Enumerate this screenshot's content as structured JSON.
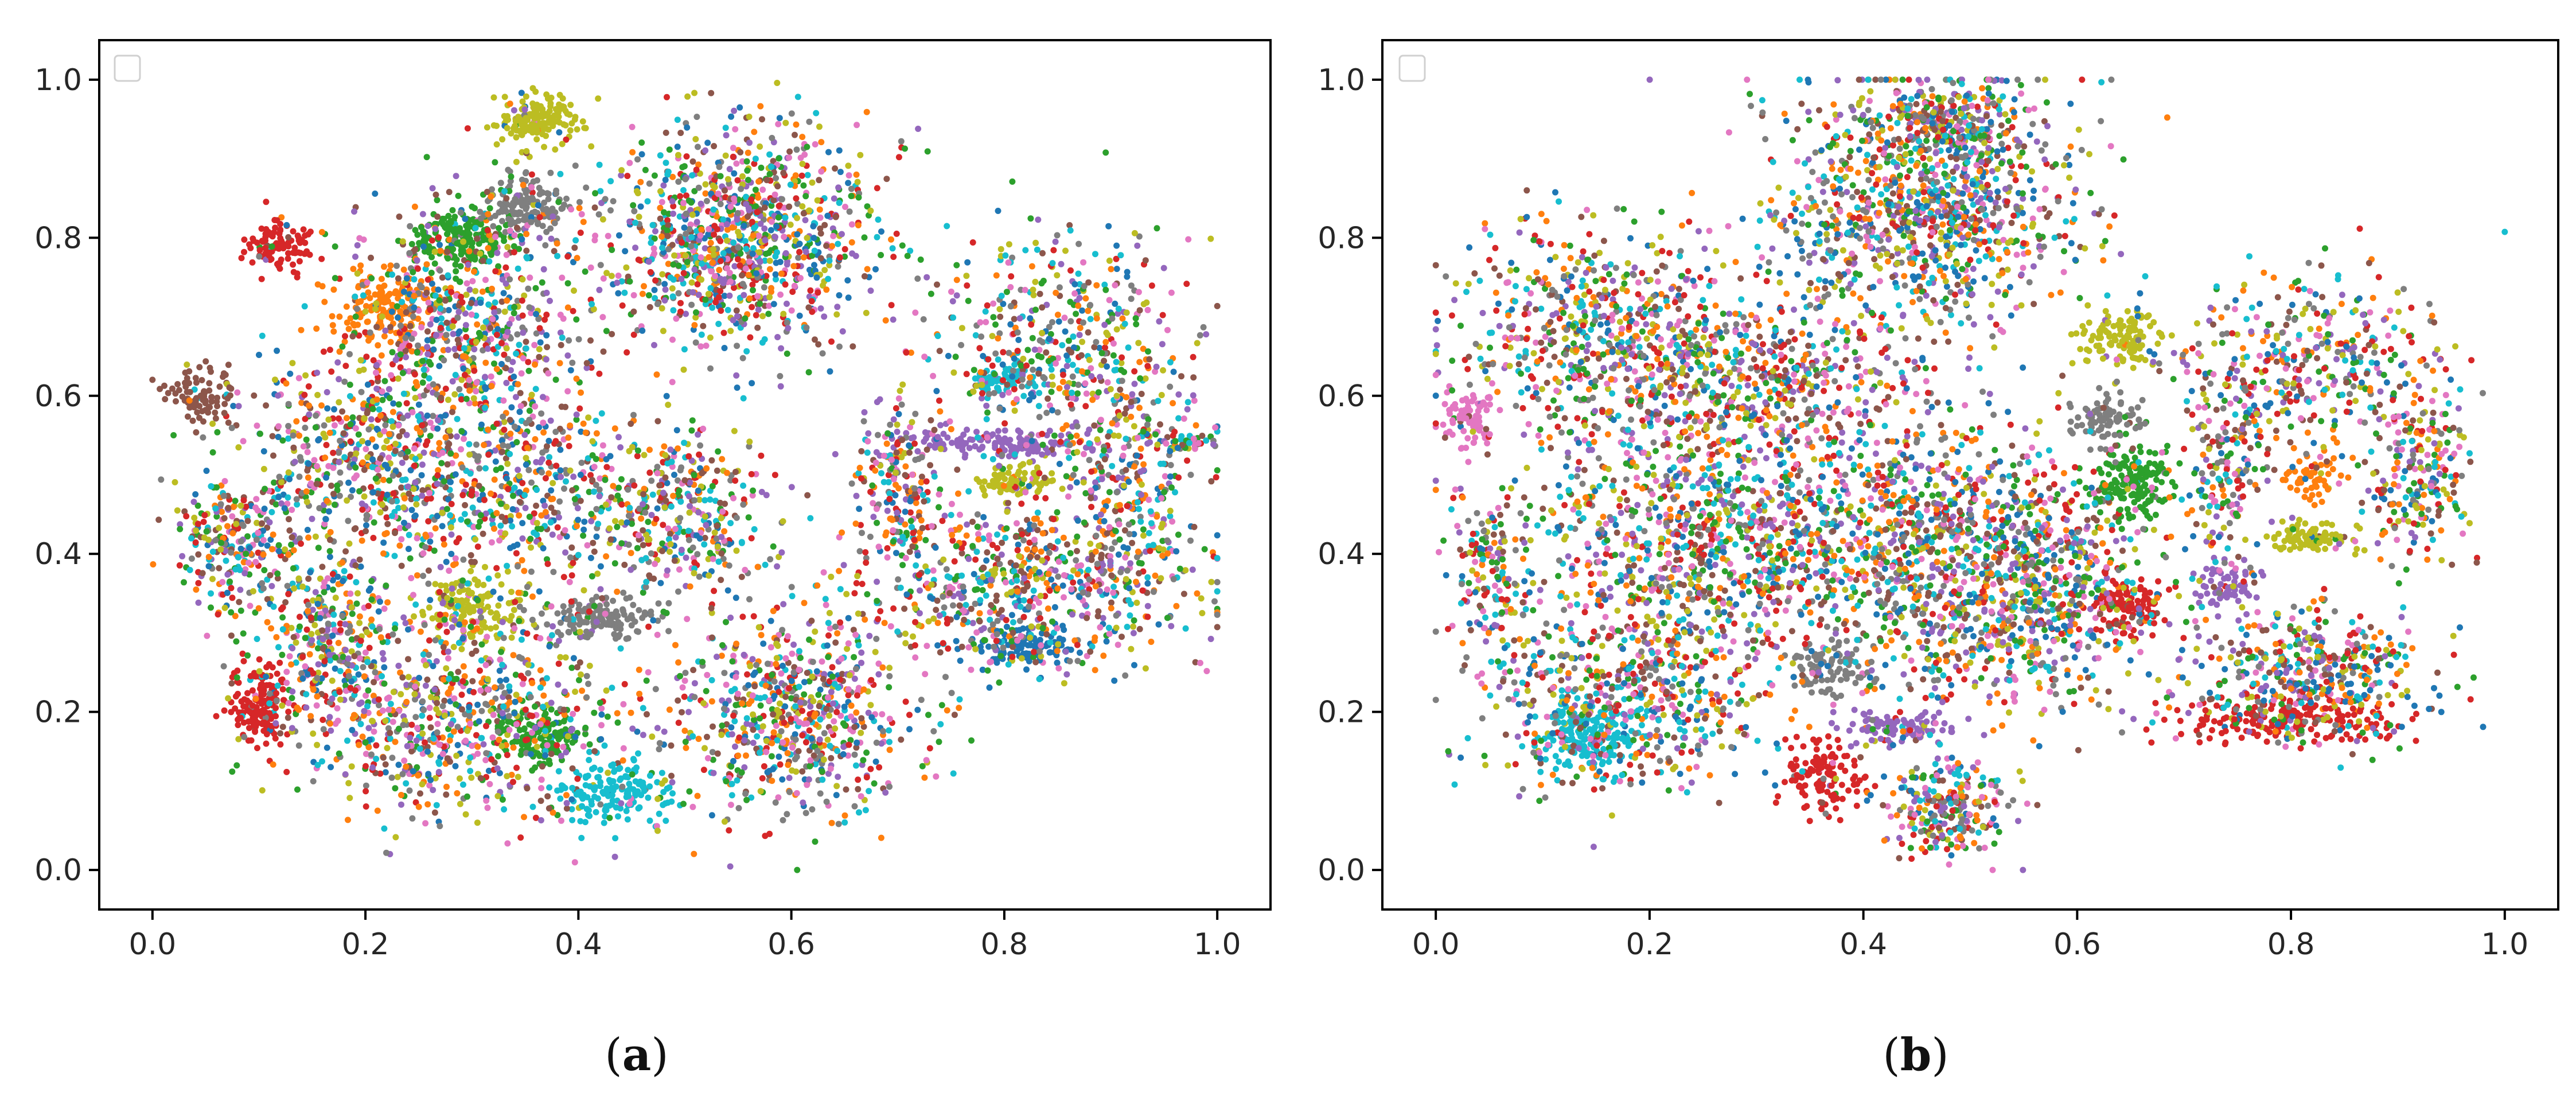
{
  "figure": {
    "panels": [
      {
        "id": "a",
        "caption_open": "(",
        "caption_letter": "a",
        "caption_close": ")"
      },
      {
        "id": "b",
        "caption_open": "(",
        "caption_letter": "b",
        "caption_close": ")"
      }
    ]
  },
  "chart_data": [
    {
      "type": "scatter",
      "panel": "a",
      "title": "",
      "xlabel": "",
      "ylabel": "",
      "xlim": [
        -0.05,
        1.05
      ],
      "ylim": [
        -0.05,
        1.05
      ],
      "xticks": [
        "0.0",
        "0.2",
        "0.4",
        "0.6",
        "0.8",
        "1.0"
      ],
      "yticks": [
        "0.0",
        "0.2",
        "0.4",
        "0.6",
        "0.8",
        "1.0"
      ],
      "grid": false,
      "legend": "upper-left (empty)",
      "palette": [
        "#1f77b4",
        "#ff7f0e",
        "#2ca02c",
        "#d62728",
        "#9467bd",
        "#8c564b",
        "#e377c2",
        "#7f7f7f",
        "#bcbd22",
        "#17becf"
      ],
      "clusters": [
        {
          "x": 0.36,
          "y": 0.95,
          "sx": 0.018,
          "sy": 0.018,
          "n": 160,
          "c": 8
        },
        {
          "x": 0.29,
          "y": 0.8,
          "sx": 0.024,
          "sy": 0.018,
          "n": 220,
          "c": 2
        },
        {
          "x": 0.35,
          "y": 0.84,
          "sx": 0.018,
          "sy": 0.018,
          "n": 140,
          "c": 7
        },
        {
          "x": 0.12,
          "y": 0.79,
          "sx": 0.015,
          "sy": 0.018,
          "n": 110,
          "c": 3
        },
        {
          "x": 0.22,
          "y": 0.71,
          "sx": 0.028,
          "sy": 0.028,
          "n": 170,
          "c": 1
        },
        {
          "x": 0.1,
          "y": 0.21,
          "sx": 0.014,
          "sy": 0.024,
          "n": 160,
          "c": 3
        },
        {
          "x": 0.82,
          "y": 0.28,
          "sx": 0.025,
          "sy": 0.013,
          "n": 110,
          "c": 0
        },
        {
          "x": 0.81,
          "y": 0.49,
          "sx": 0.018,
          "sy": 0.01,
          "n": 90,
          "c": 8
        },
        {
          "x": 0.8,
          "y": 0.54,
          "sx": 0.05,
          "sy": 0.009,
          "n": 160,
          "c": 4
        },
        {
          "x": 0.8,
          "y": 0.62,
          "sx": 0.018,
          "sy": 0.01,
          "n": 70,
          "c": 9
        },
        {
          "x": 0.42,
          "y": 0.32,
          "sx": 0.03,
          "sy": 0.012,
          "n": 140,
          "c": 7
        },
        {
          "x": 0.05,
          "y": 0.6,
          "sx": 0.018,
          "sy": 0.018,
          "n": 90,
          "c": 5
        },
        {
          "x": 0.43,
          "y": 0.1,
          "sx": 0.03,
          "sy": 0.02,
          "n": 170,
          "c": 9
        },
        {
          "x": 0.36,
          "y": 0.17,
          "sx": 0.025,
          "sy": 0.018,
          "n": 140,
          "c": 2
        },
        {
          "x": 0.3,
          "y": 0.33,
          "sx": 0.025,
          "sy": 0.02,
          "n": 140,
          "c": 8
        },
        {
          "x": 0.5,
          "y": 0.45,
          "sx": 0.04,
          "sy": 0.05,
          "n": 320,
          "c": -1
        },
        {
          "x": 0.55,
          "y": 0.8,
          "sx": 0.06,
          "sy": 0.07,
          "n": 1100,
          "c": -1
        },
        {
          "x": 0.3,
          "y": 0.68,
          "sx": 0.06,
          "sy": 0.08,
          "n": 700,
          "c": -1
        },
        {
          "x": 0.2,
          "y": 0.52,
          "sx": 0.06,
          "sy": 0.06,
          "n": 500,
          "c": -1
        },
        {
          "x": 0.08,
          "y": 0.42,
          "sx": 0.03,
          "sy": 0.04,
          "n": 250,
          "c": -1
        },
        {
          "x": 0.35,
          "y": 0.48,
          "sx": 0.08,
          "sy": 0.06,
          "n": 500,
          "c": -1
        },
        {
          "x": 0.28,
          "y": 0.2,
          "sx": 0.08,
          "sy": 0.07,
          "n": 800,
          "c": -1
        },
        {
          "x": 0.6,
          "y": 0.2,
          "sx": 0.06,
          "sy": 0.07,
          "n": 700,
          "c": -1
        },
        {
          "x": 0.16,
          "y": 0.3,
          "sx": 0.03,
          "sy": 0.06,
          "n": 300,
          "c": -1
        },
        {
          "x": 0.82,
          "y": 0.36,
          "sx": 0.08,
          "sy": 0.05,
          "n": 650,
          "c": -1
        },
        {
          "x": 0.85,
          "y": 0.66,
          "sx": 0.06,
          "sy": 0.08,
          "n": 500,
          "c": -1
        },
        {
          "x": 0.92,
          "y": 0.48,
          "sx": 0.03,
          "sy": 0.07,
          "n": 250,
          "c": -1
        },
        {
          "x": 0.7,
          "y": 0.48,
          "sx": 0.02,
          "sy": 0.06,
          "n": 200,
          "c": -1
        },
        {
          "x": 0.97,
          "y": 0.54,
          "sx": 0.015,
          "sy": 0.006,
          "n": 40,
          "c": -1
        }
      ]
    },
    {
      "type": "scatter",
      "panel": "b",
      "title": "",
      "xlabel": "",
      "ylabel": "",
      "xlim": [
        -0.05,
        1.05
      ],
      "ylim": [
        -0.05,
        1.05
      ],
      "xticks": [
        "0.0",
        "0.2",
        "0.4",
        "0.6",
        "0.8",
        "1.0"
      ],
      "yticks": [
        "0.0",
        "0.2",
        "0.4",
        "0.6",
        "0.8",
        "1.0"
      ],
      "grid": false,
      "legend": "upper-left (empty)",
      "palette": [
        "#1f77b4",
        "#ff7f0e",
        "#2ca02c",
        "#d62728",
        "#9467bd",
        "#8c564b",
        "#e377c2",
        "#7f7f7f",
        "#bcbd22",
        "#17becf"
      ],
      "clusters": [
        {
          "x": 0.64,
          "y": 0.67,
          "sx": 0.02,
          "sy": 0.018,
          "n": 120,
          "c": 8
        },
        {
          "x": 0.65,
          "y": 0.49,
          "sx": 0.02,
          "sy": 0.03,
          "n": 170,
          "c": 2
        },
        {
          "x": 0.65,
          "y": 0.33,
          "sx": 0.018,
          "sy": 0.018,
          "n": 110,
          "c": 3
        },
        {
          "x": 0.36,
          "y": 0.12,
          "sx": 0.02,
          "sy": 0.025,
          "n": 130,
          "c": 3
        },
        {
          "x": 0.43,
          "y": 0.18,
          "sx": 0.025,
          "sy": 0.01,
          "n": 100,
          "c": 4
        },
        {
          "x": 0.03,
          "y": 0.57,
          "sx": 0.014,
          "sy": 0.02,
          "n": 90,
          "c": 6
        },
        {
          "x": 0.8,
          "y": 0.19,
          "sx": 0.05,
          "sy": 0.015,
          "n": 200,
          "c": 3
        },
        {
          "x": 0.82,
          "y": 0.42,
          "sx": 0.02,
          "sy": 0.01,
          "n": 90,
          "c": 8
        },
        {
          "x": 0.82,
          "y": 0.5,
          "sx": 0.015,
          "sy": 0.015,
          "n": 60,
          "c": 1
        },
        {
          "x": 0.74,
          "y": 0.36,
          "sx": 0.015,
          "sy": 0.018,
          "n": 70,
          "c": 4
        },
        {
          "x": 0.14,
          "y": 0.17,
          "sx": 0.025,
          "sy": 0.025,
          "n": 180,
          "c": 9
        },
        {
          "x": 0.63,
          "y": 0.57,
          "sx": 0.018,
          "sy": 0.018,
          "n": 90,
          "c": 7
        },
        {
          "x": 0.37,
          "y": 0.26,
          "sx": 0.018,
          "sy": 0.018,
          "n": 90,
          "c": 7
        },
        {
          "x": 0.46,
          "y": 0.84,
          "sx": 0.07,
          "sy": 0.08,
          "n": 1100,
          "c": -1
        },
        {
          "x": 0.48,
          "y": 0.95,
          "sx": 0.03,
          "sy": 0.02,
          "n": 200,
          "c": -1
        },
        {
          "x": 0.15,
          "y": 0.68,
          "sx": 0.07,
          "sy": 0.07,
          "n": 600,
          "c": -1
        },
        {
          "x": 0.3,
          "y": 0.62,
          "sx": 0.08,
          "sy": 0.06,
          "n": 600,
          "c": -1
        },
        {
          "x": 0.25,
          "y": 0.42,
          "sx": 0.08,
          "sy": 0.07,
          "n": 900,
          "c": -1
        },
        {
          "x": 0.45,
          "y": 0.4,
          "sx": 0.07,
          "sy": 0.09,
          "n": 900,
          "c": -1
        },
        {
          "x": 0.57,
          "y": 0.35,
          "sx": 0.05,
          "sy": 0.08,
          "n": 600,
          "c": -1
        },
        {
          "x": 0.18,
          "y": 0.22,
          "sx": 0.07,
          "sy": 0.06,
          "n": 600,
          "c": -1
        },
        {
          "x": 0.48,
          "y": 0.08,
          "sx": 0.03,
          "sy": 0.03,
          "n": 250,
          "c": -1
        },
        {
          "x": 0.05,
          "y": 0.38,
          "sx": 0.02,
          "sy": 0.05,
          "n": 150,
          "c": -1
        },
        {
          "x": 0.82,
          "y": 0.25,
          "sx": 0.06,
          "sy": 0.04,
          "n": 450,
          "c": -1
        },
        {
          "x": 0.82,
          "y": 0.64,
          "sx": 0.06,
          "sy": 0.06,
          "n": 380,
          "c": -1
        },
        {
          "x": 0.92,
          "y": 0.5,
          "sx": 0.025,
          "sy": 0.06,
          "n": 220,
          "c": -1
        },
        {
          "x": 0.74,
          "y": 0.52,
          "sx": 0.02,
          "sy": 0.08,
          "n": 200,
          "c": -1
        }
      ]
    }
  ]
}
